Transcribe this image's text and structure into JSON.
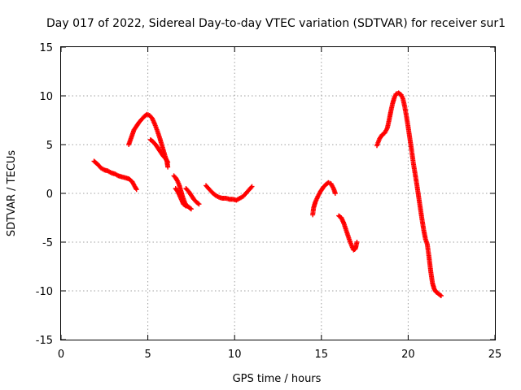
{
  "chart_data": {
    "type": "scatter",
    "title": "Day 017 of 2022, Sidereal Day-to-day VTEC variation (SDTVAR) for receiver sur1",
    "xlabel": "GPS time / hours",
    "ylabel": "SDTVAR / TECUs",
    "xlim": [
      0,
      25
    ],
    "ylim": [
      -15,
      15
    ],
    "xticks": [
      "0",
      "5",
      "10",
      "15",
      "20",
      "25"
    ],
    "yticks": [
      "15",
      "10",
      "5",
      "0",
      "-5",
      "-10",
      "-15"
    ],
    "grid": true,
    "marker": "plus",
    "color": "#ff0000",
    "segments": [
      [
        [
          1.9,
          3.3
        ],
        [
          2.1,
          3.0
        ],
        [
          2.3,
          2.6
        ],
        [
          2.5,
          2.4
        ],
        [
          2.7,
          2.3
        ],
        [
          2.9,
          2.1
        ],
        [
          3.1,
          2.0
        ],
        [
          3.3,
          1.8
        ],
        [
          3.5,
          1.7
        ],
        [
          3.7,
          1.6
        ],
        [
          3.9,
          1.5
        ],
        [
          4.1,
          1.2
        ],
        [
          4.25,
          0.7
        ],
        [
          4.35,
          0.4
        ]
      ],
      [
        [
          3.9,
          5.0
        ],
        [
          4.0,
          5.5
        ],
        [
          4.1,
          6.0
        ],
        [
          4.2,
          6.5
        ],
        [
          4.35,
          6.9
        ],
        [
          4.5,
          7.3
        ],
        [
          4.65,
          7.6
        ],
        [
          4.8,
          7.9
        ],
        [
          4.95,
          8.1
        ],
        [
          5.1,
          8.0
        ],
        [
          5.25,
          7.7
        ],
        [
          5.4,
          7.1
        ],
        [
          5.55,
          6.4
        ],
        [
          5.7,
          5.6
        ],
        [
          5.85,
          4.7
        ],
        [
          6.0,
          3.8
        ],
        [
          6.1,
          3.3
        ],
        [
          6.15,
          2.7
        ]
      ],
      [
        [
          5.15,
          5.5
        ],
        [
          5.3,
          5.3
        ],
        [
          5.45,
          5.0
        ],
        [
          5.6,
          4.6
        ],
        [
          5.75,
          4.2
        ],
        [
          5.9,
          3.8
        ],
        [
          6.05,
          3.5
        ],
        [
          6.15,
          3.2
        ]
      ],
      [
        [
          6.5,
          1.8
        ],
        [
          6.6,
          1.6
        ],
        [
          6.7,
          1.3
        ],
        [
          6.8,
          0.9
        ],
        [
          6.9,
          0.3
        ],
        [
          7.0,
          -0.3
        ],
        [
          7.1,
          -0.8
        ],
        [
          7.2,
          -1.2
        ],
        [
          7.35,
          -1.4
        ],
        [
          7.5,
          -1.6
        ]
      ],
      [
        [
          6.6,
          0.5
        ],
        [
          6.75,
          0.1
        ],
        [
          6.9,
          -0.5
        ],
        [
          7.05,
          -1.1
        ],
        [
          7.2,
          -1.3
        ]
      ],
      [
        [
          7.2,
          0.5
        ],
        [
          7.35,
          0.2
        ],
        [
          7.5,
          -0.2
        ],
        [
          7.65,
          -0.6
        ],
        [
          7.8,
          -0.9
        ],
        [
          7.95,
          -1.1
        ]
      ],
      [
        [
          8.35,
          0.8
        ],
        [
          8.5,
          0.5
        ],
        [
          8.7,
          0.1
        ],
        [
          8.9,
          -0.2
        ],
        [
          9.1,
          -0.4
        ],
        [
          9.3,
          -0.5
        ],
        [
          9.5,
          -0.5
        ],
        [
          9.7,
          -0.6
        ],
        [
          9.9,
          -0.6
        ],
        [
          10.1,
          -0.7
        ],
        [
          10.3,
          -0.5
        ],
        [
          10.5,
          -0.3
        ],
        [
          10.7,
          0.1
        ],
        [
          10.9,
          0.5
        ],
        [
          11.0,
          0.7
        ]
      ],
      [
        [
          14.5,
          -2.2
        ],
        [
          14.55,
          -1.5
        ],
        [
          14.65,
          -0.9
        ],
        [
          14.8,
          -0.3
        ],
        [
          14.95,
          0.2
        ],
        [
          15.1,
          0.6
        ],
        [
          15.25,
          0.9
        ],
        [
          15.4,
          1.1
        ],
        [
          15.55,
          1.0
        ],
        [
          15.7,
          0.5
        ],
        [
          15.8,
          0.0
        ]
      ],
      [
        [
          16.0,
          -2.3
        ],
        [
          16.15,
          -2.5
        ],
        [
          16.3,
          -3.1
        ],
        [
          16.45,
          -3.9
        ],
        [
          16.6,
          -4.7
        ],
        [
          16.75,
          -5.4
        ],
        [
          16.85,
          -5.8
        ],
        [
          16.95,
          -5.7
        ],
        [
          17.0,
          -5.4
        ],
        [
          17.05,
          -5.0
        ]
      ],
      [
        [
          18.2,
          4.9
        ],
        [
          18.35,
          5.6
        ],
        [
          18.5,
          6.0
        ],
        [
          18.65,
          6.2
        ],
        [
          18.8,
          6.7
        ],
        [
          18.9,
          7.5
        ],
        [
          19.0,
          8.4
        ],
        [
          19.1,
          9.2
        ],
        [
          19.2,
          9.8
        ],
        [
          19.3,
          10.2
        ],
        [
          19.45,
          10.3
        ],
        [
          19.6,
          10.1
        ],
        [
          19.7,
          9.7
        ],
        [
          19.8,
          8.9
        ],
        [
          19.9,
          7.9
        ],
        [
          20.0,
          6.8
        ],
        [
          20.1,
          5.6
        ],
        [
          20.2,
          4.4
        ],
        [
          20.3,
          3.1
        ],
        [
          20.4,
          2.0
        ],
        [
          20.5,
          0.9
        ],
        [
          20.6,
          -0.3
        ],
        [
          20.7,
          -1.5
        ],
        [
          20.8,
          -2.7
        ],
        [
          20.9,
          -3.8
        ],
        [
          21.0,
          -4.7
        ],
        [
          21.1,
          -5.2
        ],
        [
          21.2,
          -6.5
        ],
        [
          21.3,
          -8.0
        ],
        [
          21.4,
          -9.2
        ],
        [
          21.5,
          -9.8
        ],
        [
          21.6,
          -10.1
        ],
        [
          21.75,
          -10.3
        ],
        [
          21.9,
          -10.5
        ]
      ]
    ]
  }
}
